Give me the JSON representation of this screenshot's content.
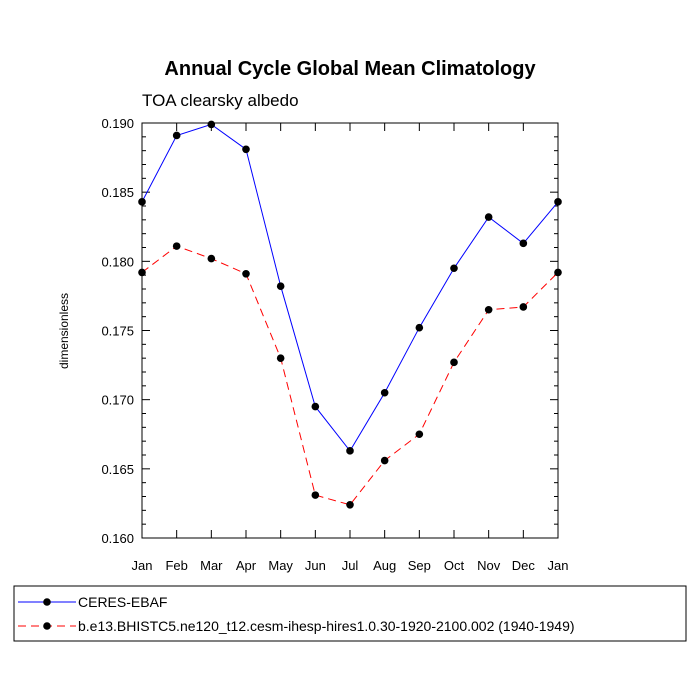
{
  "chart_data": {
    "type": "line",
    "title": "Annual Cycle Global Mean Climatology",
    "subtitle": "TOA clearsky albedo",
    "xlabel": "",
    "ylabel": "dimensionless",
    "categories": [
      "Jan",
      "Feb",
      "Mar",
      "Apr",
      "May",
      "Jun",
      "Jul",
      "Aug",
      "Sep",
      "Oct",
      "Nov",
      "Dec",
      "Jan"
    ],
    "ylim": [
      0.16,
      0.19
    ],
    "yticks": [
      "0.160",
      "0.165",
      "0.170",
      "0.175",
      "0.180",
      "0.185",
      "0.190"
    ],
    "legend_position": "bottom",
    "grid": false,
    "series": [
      {
        "name": "CERES-EBAF",
        "color": "#0000ff",
        "line_style": "solid",
        "marker": "filled-circle",
        "values": [
          0.1843,
          0.1891,
          0.1899,
          0.1881,
          0.1782,
          0.1695,
          0.1663,
          0.1705,
          0.1752,
          0.1795,
          0.1832,
          0.1813,
          0.1843
        ]
      },
      {
        "name": "b.e13.BHISTC5.ne120_t12.cesm-ihesp-hires1.0.30-1920-2100.002 (1940-1949)",
        "color": "#ff0000",
        "line_style": "dashed",
        "marker": "filled-circle",
        "values": [
          0.1792,
          0.1811,
          0.1802,
          0.1791,
          0.173,
          0.1631,
          0.1624,
          0.1656,
          0.1675,
          0.1727,
          0.1765,
          0.1767,
          0.1792
        ]
      }
    ]
  }
}
